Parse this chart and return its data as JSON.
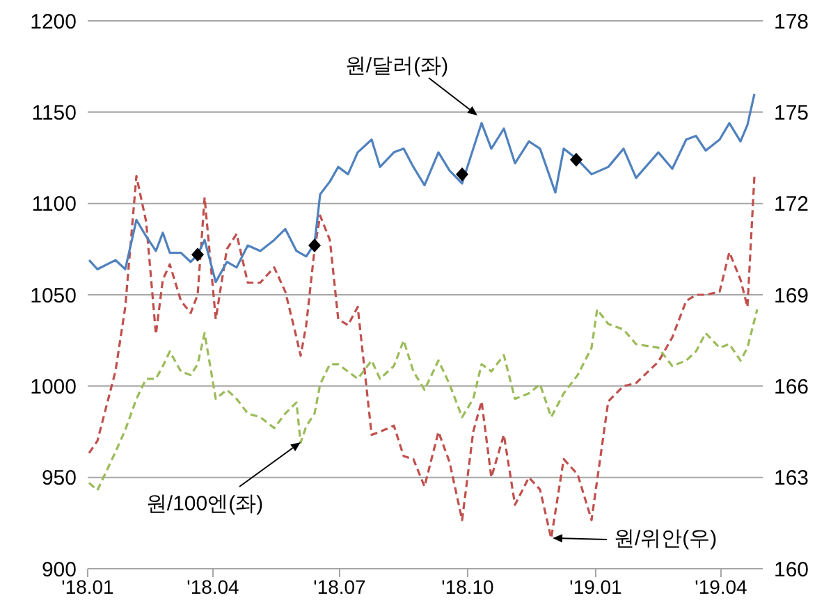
{
  "chart_data": {
    "type": "line",
    "xlim": [
      "2018-01-01",
      "2019-05-01"
    ],
    "xticks": [
      {
        "value": "2018-01-01",
        "label": "'18.01"
      },
      {
        "value": "2018-04-01",
        "label": "'18.04"
      },
      {
        "value": "2018-07-01",
        "label": "'18.07"
      },
      {
        "value": "2018-10-01",
        "label": "'18.10"
      },
      {
        "value": "2019-01-01",
        "label": "'19.01"
      },
      {
        "value": "2019-04-01",
        "label": "'19.04"
      }
    ],
    "ylim": [
      900,
      1200
    ],
    "yticks": [
      900,
      950,
      1000,
      1050,
      1100,
      1150,
      1200
    ],
    "y2lim": [
      160,
      178
    ],
    "y2ticks": [
      160,
      163,
      166,
      169,
      172,
      175,
      178
    ],
    "grid": "y",
    "legend": false,
    "series": [
      {
        "color": "#c0504d",
        "axis": "y2",
        "line_style": "dashed",
        "x": [
          "2018-01-02",
          "2018-01-08",
          "2018-01-21",
          "2018-01-28",
          "2018-02-05",
          "2018-02-12",
          "2018-02-19",
          "2018-02-24",
          "2018-03-01",
          "2018-03-09",
          "2018-03-16",
          "2018-03-21",
          "2018-03-26",
          "2018-04-03",
          "2018-04-11",
          "2018-04-18",
          "2018-04-26",
          "2018-05-05",
          "2018-05-15",
          "2018-05-23",
          "2018-05-31",
          "2018-06-03",
          "2018-06-07",
          "2018-06-13",
          "2018-06-17",
          "2018-06-24",
          "2018-06-30",
          "2018-07-07",
          "2018-07-14",
          "2018-07-24",
          "2018-07-30",
          "2018-08-09",
          "2018-08-16",
          "2018-08-23",
          "2018-08-31",
          "2018-09-10",
          "2018-09-18",
          "2018-09-27",
          "2018-10-05",
          "2018-10-11",
          "2018-10-18",
          "2018-10-27",
          "2018-11-04",
          "2018-11-14",
          "2018-11-22",
          "2018-11-30",
          "2018-12-09",
          "2018-12-19",
          "2018-12-29",
          "2019-01-10",
          "2019-01-21",
          "2019-01-30",
          "2019-02-15",
          "2019-02-25",
          "2019-03-07",
          "2019-03-14",
          "2019-03-21",
          "2019-03-31",
          "2019-04-07",
          "2019-04-15",
          "2019-04-20",
          "2019-04-25"
        ],
        "values": [
          163.8,
          164.2,
          166.5,
          168.6,
          172.9,
          171.4,
          167.7,
          169.5,
          170,
          168.8,
          168.4,
          169,
          172.2,
          168.2,
          170.5,
          171,
          169.4,
          169.4,
          169.9,
          169.1,
          167.6,
          167,
          168,
          170.5,
          171.6,
          170.8,
          168.2,
          168,
          168.6,
          164.4,
          164.5,
          164.7,
          163.7,
          163.6,
          162.7,
          164.5,
          163.5,
          161.6,
          164.5,
          165.5,
          163,
          164.4,
          162.1,
          163,
          162.6,
          161,
          163.6,
          163.1,
          161.6,
          165.5,
          166,
          166.1,
          166.8,
          167.6,
          168.8,
          169,
          169,
          169.1,
          170.4,
          169.5,
          168.6,
          172.9
        ]
      },
      {
        "color": "#9bbb59",
        "line_style": "dashed",
        "x": [
          "2018-01-02",
          "2018-01-08",
          "2018-01-21",
          "2018-01-28",
          "2018-02-05",
          "2018-02-12",
          "2018-02-19",
          "2018-02-24",
          "2018-03-01",
          "2018-03-09",
          "2018-03-16",
          "2018-03-21",
          "2018-03-26",
          "2018-04-03",
          "2018-04-11",
          "2018-04-18",
          "2018-04-26",
          "2018-05-05",
          "2018-05-15",
          "2018-05-23",
          "2018-05-31",
          "2018-06-03",
          "2018-06-07",
          "2018-06-13",
          "2018-06-17",
          "2018-06-24",
          "2018-06-30",
          "2018-07-07",
          "2018-07-14",
          "2018-07-24",
          "2018-07-30",
          "2018-08-09",
          "2018-08-16",
          "2018-08-23",
          "2018-08-31",
          "2018-09-10",
          "2018-09-18",
          "2018-09-27",
          "2018-10-05",
          "2018-10-11",
          "2018-10-18",
          "2018-10-27",
          "2018-11-04",
          "2018-11-14",
          "2018-11-22",
          "2018-11-30",
          "2018-12-09",
          "2018-12-19",
          "2018-12-29",
          "2019-01-02",
          "2019-01-10",
          "2019-01-21",
          "2019-01-30",
          "2019-02-15",
          "2019-02-25",
          "2019-03-07",
          "2019-03-14",
          "2019-03-21",
          "2019-03-31",
          "2019-04-07",
          "2019-04-15",
          "2019-04-20",
          "2019-04-27"
        ],
        "values": [
          947,
          943,
          964,
          976,
          993,
          1004,
          1004,
          1011,
          1019,
          1008,
          1006,
          1012,
          1029,
          993,
          998,
          993,
          985,
          983,
          977,
          985,
          991,
          969,
          978,
          985,
          1001,
          1012,
          1012,
          1008,
          1004,
          1014,
          1004,
          1011,
          1025,
          1008,
          998,
          1014,
          1001,
          983,
          993,
          1012,
          1008,
          1017,
          993,
          996,
          1001,
          983,
          996,
          1006,
          1021,
          1042,
          1034,
          1031,
          1023,
          1021,
          1011,
          1014,
          1019,
          1029,
          1021,
          1023,
          1014,
          1021,
          1042
        ]
      },
      {
        "color": "#4f81bd",
        "line_style": "solid",
        "x": [
          "2018-01-02",
          "2018-01-08",
          "2018-01-21",
          "2018-01-28",
          "2018-02-05",
          "2018-02-12",
          "2018-02-19",
          "2018-02-24",
          "2018-03-01",
          "2018-03-09",
          "2018-03-16",
          "2018-03-21",
          "2018-03-26",
          "2018-04-03",
          "2018-04-11",
          "2018-04-18",
          "2018-04-26",
          "2018-05-05",
          "2018-05-15",
          "2018-05-23",
          "2018-05-31",
          "2018-06-07",
          "2018-06-13",
          "2018-06-17",
          "2018-06-24",
          "2018-06-30",
          "2018-07-07",
          "2018-07-14",
          "2018-07-24",
          "2018-07-30",
          "2018-08-09",
          "2018-08-16",
          "2018-08-23",
          "2018-08-31",
          "2018-09-10",
          "2018-09-18",
          "2018-09-27",
          "2018-10-05",
          "2018-10-11",
          "2018-10-18",
          "2018-10-27",
          "2018-11-04",
          "2018-11-14",
          "2018-11-22",
          "2018-12-03",
          "2018-12-09",
          "2018-12-19",
          "2018-12-29",
          "2019-01-10",
          "2019-01-21",
          "2019-01-30",
          "2019-02-15",
          "2019-02-25",
          "2019-03-07",
          "2019-03-14",
          "2019-03-21",
          "2019-03-31",
          "2019-04-07",
          "2019-04-15",
          "2019-04-20",
          "2019-04-25"
        ],
        "values": [
          1069,
          1064,
          1069,
          1064,
          1091,
          1082,
          1074,
          1084,
          1073,
          1073,
          1068,
          1072,
          1080,
          1057,
          1068,
          1065,
          1077,
          1074,
          1080,
          1086,
          1074,
          1071,
          1078,
          1105,
          1112,
          1120,
          1116,
          1128,
          1135,
          1120,
          1128,
          1130,
          1120,
          1110,
          1128,
          1118,
          1111,
          1130,
          1144,
          1130,
          1141,
          1122,
          1134,
          1130,
          1106,
          1130,
          1124,
          1116,
          1120,
          1130,
          1114,
          1128,
          1119,
          1135,
          1137,
          1129,
          1135,
          1144,
          1134,
          1143,
          1160
        ]
      },
      {
        "type": "scatter",
        "color": "#000000",
        "marker": "diamond",
        "x": [
          "2018-03-21",
          "2018-06-13",
          "2018-09-27",
          "2018-12-18"
        ],
        "values": [
          1072,
          1077,
          1116,
          1124
        ]
      }
    ],
    "annotations": [
      "원/달러(좌)",
      "원/100엔(좌)",
      "원/위안(우)"
    ]
  }
}
